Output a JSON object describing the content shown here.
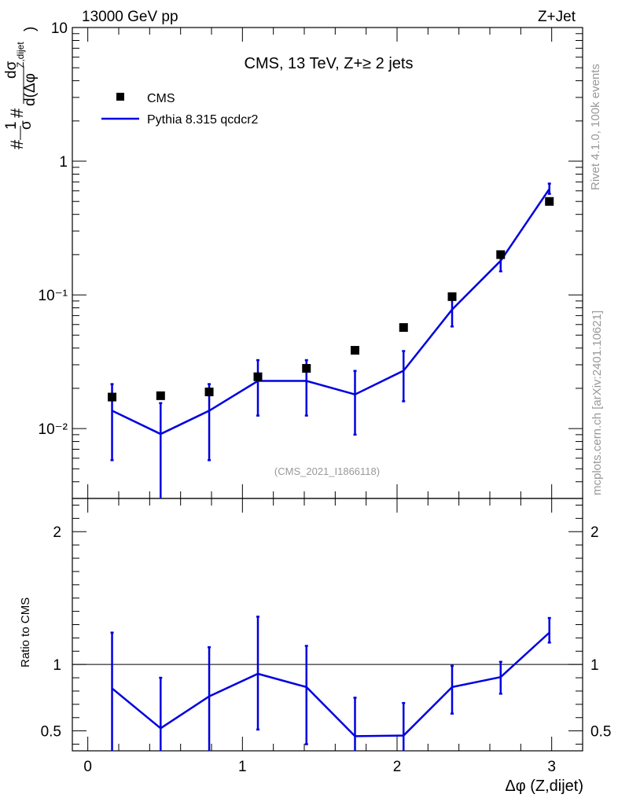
{
  "header": {
    "left_title": "13000 GeV pp",
    "right_title": "Z+Jet"
  },
  "side_text": {
    "rivet": "Rivet 4.1.0,  100k events",
    "mcplots": "mcplots.cern.ch [arXiv:2401.10621]"
  },
  "colors": {
    "data": "#000000",
    "mc": "#0000e0",
    "axis": "#000000",
    "watermark": "#999999"
  },
  "chart_data": [
    {
      "type": "scatter",
      "panel": "main",
      "title": "CMS, 13 TeV, Z+≥ 2 jets",
      "watermark": "(CMS_2021_I1866118)",
      "ylabel": "#1/σ # dσ/d(Δφ^{Z,dijet})",
      "yscale": "log",
      "xlim": [
        -0.1,
        3.2
      ],
      "ylim": [
        0.003,
        10
      ],
      "y_tick_labels": [
        "10⁻²",
        "10⁻¹",
        "1",
        "10"
      ],
      "legend": {
        "placement": "top-left",
        "entries": [
          "CMS",
          "Pythia 8.315 qcdcr2"
        ]
      },
      "x": [
        0.157,
        0.471,
        0.785,
        1.1,
        1.414,
        1.728,
        2.042,
        2.356,
        2.67,
        2.985
      ],
      "series": [
        {
          "name": "CMS",
          "style": "markers",
          "values": [
            0.0172,
            0.0176,
            0.0188,
            0.0244,
            0.0282,
            0.0385,
            0.057,
            0.097,
            0.2,
            0.5
          ]
        },
        {
          "name": "Pythia 8.315 qcdcr2",
          "style": "line",
          "values": [
            0.0136,
            0.0091,
            0.0136,
            0.0227,
            0.0227,
            0.018,
            0.0271,
            0.0777,
            0.18,
            0.62
          ],
          "err_low": [
            0.0058,
            0.0022,
            0.0058,
            0.0125,
            0.0125,
            0.009,
            0.016,
            0.058,
            0.15,
            0.57
          ],
          "err_high": [
            0.0215,
            0.0155,
            0.0215,
            0.0325,
            0.0325,
            0.027,
            0.038,
            0.097,
            0.21,
            0.68
          ]
        }
      ]
    },
    {
      "type": "line",
      "panel": "ratio",
      "ylabel": "Ratio to CMS",
      "xlabel": "Δφ (Z,dijet)",
      "xlim": [
        -0.1,
        3.2
      ],
      "ylim": [
        0.35,
        2.25
      ],
      "x_tick_labels": [
        "0",
        "1",
        "2",
        "3"
      ],
      "y_tick_labels": [
        "0.5",
        "1",
        "2"
      ],
      "reference_line": 1,
      "x": [
        0.157,
        0.471,
        0.785,
        1.1,
        1.414,
        1.728,
        2.042,
        2.356,
        2.67,
        2.985
      ],
      "series": [
        {
          "name": "Pythia 8.315 qcdcr2",
          "values": [
            0.82,
            0.52,
            0.76,
            0.93,
            0.83,
            0.46,
            0.465,
            0.83,
            0.905,
            1.24
          ],
          "err_low": [
            0.33,
            0.33,
            0.33,
            0.51,
            0.4,
            0.33,
            0.33,
            0.63,
            0.78,
            1.165
          ],
          "err_high": [
            1.24,
            0.9,
            1.13,
            1.36,
            1.14,
            0.75,
            0.71,
            0.99,
            1.02,
            1.35
          ]
        }
      ]
    }
  ]
}
